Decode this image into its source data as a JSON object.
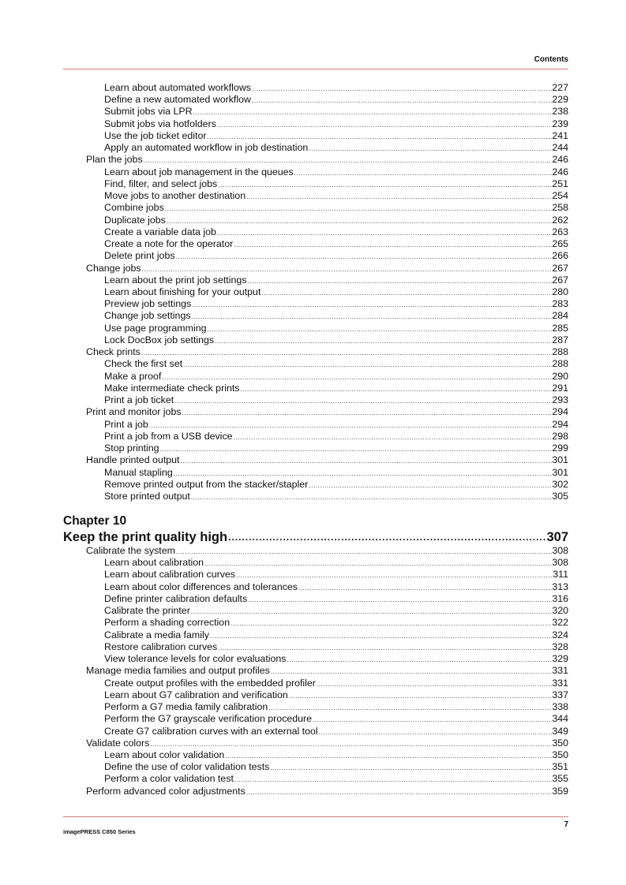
{
  "header": {
    "section": "Contents"
  },
  "toc_part1": [
    {
      "level": 2,
      "title": "Learn about automated workflows",
      "page": "227"
    },
    {
      "level": 2,
      "title": "Define a new automated workflow",
      "page": "229"
    },
    {
      "level": 2,
      "title": "Submit jobs via LPR",
      "page": "238"
    },
    {
      "level": 2,
      "title": "Submit jobs via hotfolders",
      "page": "239"
    },
    {
      "level": 2,
      "title": "Use the job ticket editor",
      "page": "241"
    },
    {
      "level": 2,
      "title": "Apply an automated workflow in job destination",
      "page": "244"
    },
    {
      "level": 1,
      "title": "Plan the jobs",
      "page": "246"
    },
    {
      "level": 2,
      "title": "Learn about job management in the queues",
      "page": "246"
    },
    {
      "level": 2,
      "title": "Find, filter, and select jobs",
      "page": "251"
    },
    {
      "level": 2,
      "title": "Move jobs to another destination",
      "page": "254"
    },
    {
      "level": 2,
      "title": "Combine jobs",
      "page": "258"
    },
    {
      "level": 2,
      "title": "Duplicate jobs",
      "page": "262"
    },
    {
      "level": 2,
      "title": "Create a variable data job",
      "page": "263"
    },
    {
      "level": 2,
      "title": "Create a note for the operator",
      "page": "265"
    },
    {
      "level": 2,
      "title": "Delete print jobs",
      "page": "266"
    },
    {
      "level": 1,
      "title": "Change jobs",
      "page": "267"
    },
    {
      "level": 2,
      "title": "Learn about the print job settings",
      "page": "267"
    },
    {
      "level": 2,
      "title": "Learn about finishing for your output",
      "page": "280"
    },
    {
      "level": 2,
      "title": "Preview job settings",
      "page": "283"
    },
    {
      "level": 2,
      "title": "Change job settings",
      "page": "284"
    },
    {
      "level": 2,
      "title": "Use page programming",
      "page": "285"
    },
    {
      "level": 2,
      "title": "Lock DocBox job settings",
      "page": "287"
    },
    {
      "level": 1,
      "title": "Check prints",
      "page": "288"
    },
    {
      "level": 2,
      "title": "Check the first set",
      "page": "288"
    },
    {
      "level": 2,
      "title": "Make a proof",
      "page": "290"
    },
    {
      "level": 2,
      "title": "Make intermediate check prints",
      "page": "291"
    },
    {
      "level": 2,
      "title": "Print a job ticket",
      "page": "293"
    },
    {
      "level": 1,
      "title": "Print and monitor jobs",
      "page": "294"
    },
    {
      "level": 2,
      "title": "Print a job",
      "page": "294"
    },
    {
      "level": 2,
      "title": "Print a job from a USB device",
      "page": "298"
    },
    {
      "level": 2,
      "title": "Stop printing",
      "page": "299"
    },
    {
      "level": 1,
      "title": "Handle printed output",
      "page": "301"
    },
    {
      "level": 2,
      "title": "Manual stapling",
      "page": "301"
    },
    {
      "level": 2,
      "title": "Remove printed output from the stacker/stapler",
      "page": "302"
    },
    {
      "level": 2,
      "title": "Store printed output",
      "page": "305"
    }
  ],
  "chapter": {
    "label": "Chapter 10",
    "title": "Keep the print quality high",
    "page": "307"
  },
  "toc_part2": [
    {
      "level": 1,
      "title": "Calibrate the system",
      "page": "308"
    },
    {
      "level": 2,
      "title": "Learn about calibration",
      "page": "308"
    },
    {
      "level": 2,
      "title": "Learn about calibration curves",
      "page": "311"
    },
    {
      "level": 2,
      "title": "Learn about color differences and tolerances",
      "page": "313"
    },
    {
      "level": 2,
      "title": "Define printer calibration defaults",
      "page": "316"
    },
    {
      "level": 2,
      "title": "Calibrate the printer",
      "page": "320"
    },
    {
      "level": 2,
      "title": "Perform a shading correction",
      "page": "322"
    },
    {
      "level": 2,
      "title": "Calibrate a media family",
      "page": "324"
    },
    {
      "level": 2,
      "title": "Restore calibration curves",
      "page": "328"
    },
    {
      "level": 2,
      "title": "View tolerance levels for color evaluations",
      "page": "329"
    },
    {
      "level": 1,
      "title": "Manage media families and output profiles",
      "page": "331"
    },
    {
      "level": 2,
      "title": "Create output profiles with the embedded profiler",
      "page": "331"
    },
    {
      "level": 2,
      "title": "Learn about G7 calibration and verification",
      "page": "337"
    },
    {
      "level": 2,
      "title": "Perform a G7 media family calibration",
      "page": "338"
    },
    {
      "level": 2,
      "title": "Perform the G7 grayscale verification procedure",
      "page": "344"
    },
    {
      "level": 2,
      "title": "Create G7 calibration curves with an external tool",
      "page": "349"
    },
    {
      "level": 1,
      "title": "Validate colors",
      "page": "350"
    },
    {
      "level": 2,
      "title": "Learn about color validation",
      "page": "350"
    },
    {
      "level": 2,
      "title": "Define the use of color validation tests",
      "page": "351"
    },
    {
      "level": 2,
      "title": "Perform a color validation test",
      "page": "355"
    },
    {
      "level": 1,
      "title": "Perform advanced color adjustments",
      "page": "359"
    }
  ],
  "footer": {
    "page_number": "7",
    "product": "imagePRESS C850 Series"
  },
  "colors": {
    "rule": "#d47a7a"
  }
}
